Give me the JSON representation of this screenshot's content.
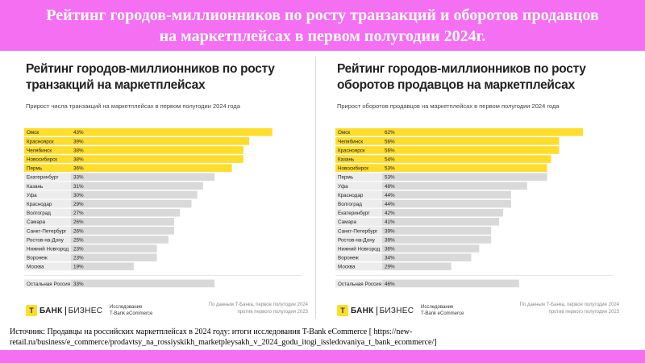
{
  "banner": {
    "line1": "Рейтинг городов-миллионников по росту транзакций и оборотов продавцов",
    "line2": "на маркетплейсах в первом полугодии 2024г."
  },
  "brand": {
    "logo_letter": "Т",
    "bank": "БАНК",
    "business": "БИЗНЕС",
    "research_line1": "Исследование",
    "research_line2": "T-Bank eCommerce",
    "source_line1": "По данным Т-Банка, первое полугодие 2024",
    "source_line2": "против первого полугодия 2023"
  },
  "source": {
    "text": "Источник: Продавцы на российских маркетплейсах в 2024 году: итоги исследования T-Bank eCommerce [ https://new-retail.ru/business/e_commerce/prodavtsy_na_rossiyskikh_marketpleysakh_v_2024_godu_itogi_issledovaniya_t_bank_ecommerce/]"
  },
  "colors": {
    "banner": "#f46ff2",
    "highlight_bar": "#ffdd2d",
    "regular_bar": "#d9d9d9",
    "label_bg": "#ececec"
  },
  "chart_data": [
    {
      "type": "bar",
      "orientation": "horizontal",
      "title_line1": "Рейтинг городов-миллионников по росту",
      "title_line2": "транзакций на маркетплейсах",
      "subtitle": "Прирост числа транзакций на маркетплейсах в первом полугодии 2024 года",
      "categories": [
        "Омск",
        "Красноярск",
        "Челябинск",
        "Новосибирск",
        "Пермь",
        "Екатеринбург",
        "Казань",
        "Уфа",
        "Краснодар",
        "Волгоград",
        "Самара",
        "Санкт-Петербург",
        "Ростов-на-Дону",
        "Нижний Новгород",
        "Воронеж",
        "Москва"
      ],
      "values": [
        43,
        39,
        38,
        38,
        36,
        33,
        31,
        30,
        29,
        27,
        26,
        26,
        25,
        23,
        23,
        19
      ],
      "labels": [
        "43%",
        "39%",
        "38%",
        "38%",
        "36%",
        "33%",
        "31%",
        "30%",
        "29%",
        "27%",
        "26%",
        "26%",
        "25%",
        "23%",
        "23%",
        "19%"
      ],
      "highlight_top": 5,
      "rest": {
        "category": "Остальная Россия",
        "value": 33,
        "label": "33%"
      },
      "xlim": [
        0,
        45
      ]
    },
    {
      "type": "bar",
      "orientation": "horizontal",
      "title_line1": "Рейтинг городов-миллионников по росту",
      "title_line2": "оборотов продавцов на маркетплейсах",
      "subtitle": "Прирост оборотов продавцов на маркетплейсах в первом полугодии 2024 года",
      "categories": [
        "Омск",
        "Челябинск",
        "Красноярск",
        "Казань",
        "Новосибирск",
        "Пермь",
        "Уфа",
        "Краснодар",
        "Волгоград",
        "Екатеринбург",
        "Самара",
        "Санкт-Петербург",
        "Ростов-на-Дону",
        "Нижний Новгород",
        "Воронеж",
        "Москва"
      ],
      "values": [
        62,
        56,
        56,
        54,
        53,
        53,
        48,
        44,
        44,
        42,
        41,
        39,
        39,
        36,
        34,
        29
      ],
      "labels": [
        "62%",
        "56%",
        "56%",
        "54%",
        "53%",
        "53%",
        "48%",
        "44%",
        "44%",
        "42%",
        "41%",
        "39%",
        "39%",
        "36%",
        "34%",
        "29%"
      ],
      "highlight_top": 5,
      "rest": {
        "category": "Остальная Россия",
        "value": 46,
        "label": "46%"
      },
      "xlim": [
        0,
        65
      ]
    }
  ]
}
